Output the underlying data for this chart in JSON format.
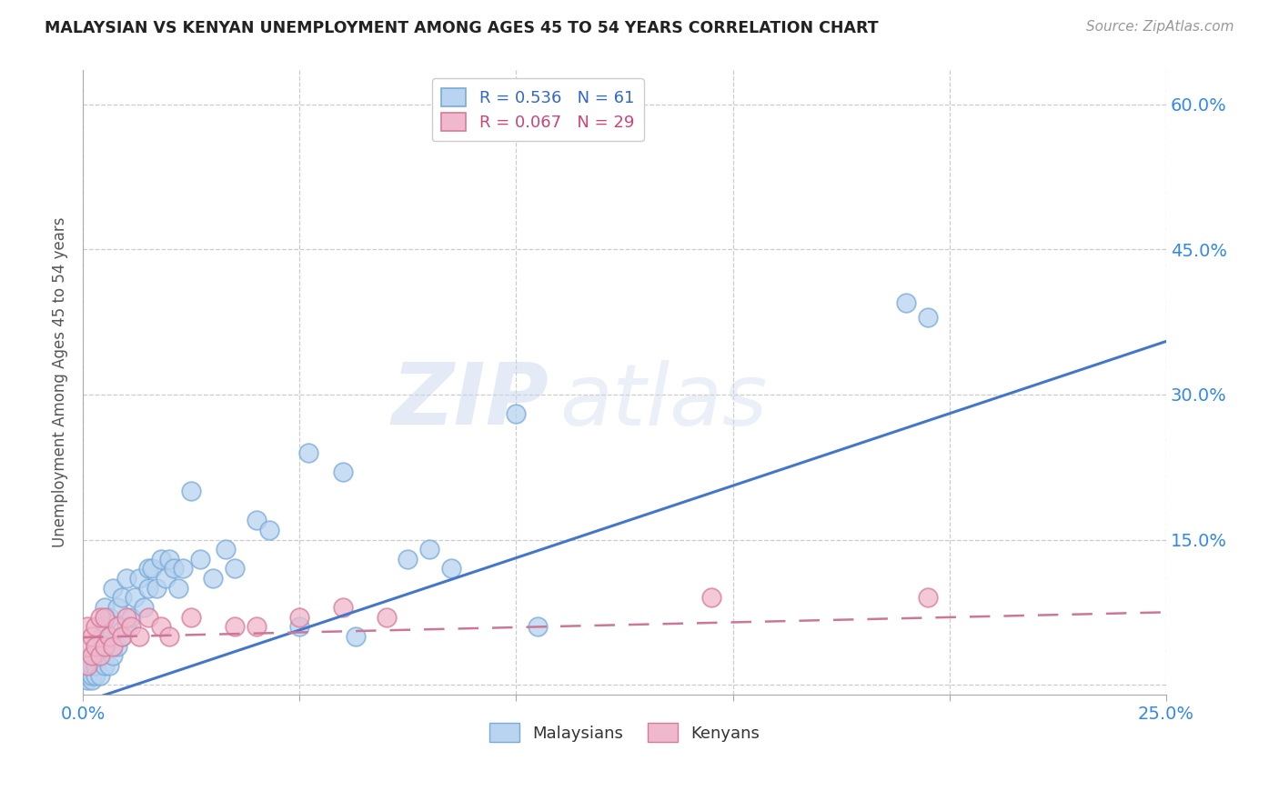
{
  "title": "MALAYSIAN VS KENYAN UNEMPLOYMENT AMONG AGES 45 TO 54 YEARS CORRELATION CHART",
  "source": "Source: ZipAtlas.com",
  "ylabel": "Unemployment Among Ages 45 to 54 years",
  "xlim": [
    0.0,
    0.25
  ],
  "ylim": [
    -0.01,
    0.635
  ],
  "xtick_positions": [
    0.0,
    0.05,
    0.1,
    0.15,
    0.2,
    0.25
  ],
  "xtick_labels": [
    "0.0%",
    "",
    "",
    "",
    "",
    "25.0%"
  ],
  "ytick_vals": [
    0.0,
    0.15,
    0.3,
    0.45,
    0.6
  ],
  "ytick_labels": [
    "",
    "15.0%",
    "30.0%",
    "45.0%",
    "60.0%"
  ],
  "malaysia_fill": "#b8d4f0",
  "malaysia_edge": "#7aaad8",
  "kenya_fill": "#f0b8cc",
  "kenya_edge": "#d87a9a",
  "line_blue": "#4477cc",
  "line_pink": "#cc7799",
  "watermark": "ZIPatlas",
  "malaysian_x": [
    0.001,
    0.001,
    0.001,
    0.002,
    0.002,
    0.002,
    0.002,
    0.003,
    0.003,
    0.003,
    0.003,
    0.004,
    0.004,
    0.004,
    0.005,
    0.005,
    0.005,
    0.005,
    0.006,
    0.006,
    0.006,
    0.007,
    0.007,
    0.008,
    0.008,
    0.009,
    0.009,
    0.01,
    0.01,
    0.011,
    0.012,
    0.013,
    0.014,
    0.015,
    0.015,
    0.016,
    0.017,
    0.018,
    0.019,
    0.02,
    0.021,
    0.022,
    0.023,
    0.025,
    0.027,
    0.03,
    0.033,
    0.035,
    0.04,
    0.043,
    0.05,
    0.052,
    0.06,
    0.063,
    0.075,
    0.08,
    0.085,
    0.1,
    0.105,
    0.19,
    0.195
  ],
  "malaysian_y": [
    0.005,
    0.01,
    0.02,
    0.005,
    0.01,
    0.02,
    0.03,
    0.01,
    0.02,
    0.03,
    0.04,
    0.01,
    0.03,
    0.05,
    0.02,
    0.04,
    0.06,
    0.08,
    0.02,
    0.05,
    0.07,
    0.03,
    0.1,
    0.04,
    0.08,
    0.05,
    0.09,
    0.06,
    0.11,
    0.07,
    0.09,
    0.11,
    0.08,
    0.12,
    0.1,
    0.12,
    0.1,
    0.13,
    0.11,
    0.13,
    0.12,
    0.1,
    0.12,
    0.2,
    0.13,
    0.11,
    0.14,
    0.12,
    0.17,
    0.16,
    0.06,
    0.24,
    0.22,
    0.05,
    0.13,
    0.14,
    0.12,
    0.28,
    0.06,
    0.395,
    0.38
  ],
  "kenyan_x": [
    0.001,
    0.001,
    0.001,
    0.002,
    0.002,
    0.003,
    0.003,
    0.004,
    0.004,
    0.005,
    0.005,
    0.006,
    0.007,
    0.008,
    0.009,
    0.01,
    0.011,
    0.013,
    0.015,
    0.018,
    0.02,
    0.025,
    0.035,
    0.04,
    0.05,
    0.06,
    0.07,
    0.145,
    0.195
  ],
  "kenyan_y": [
    0.02,
    0.04,
    0.06,
    0.03,
    0.05,
    0.04,
    0.06,
    0.03,
    0.07,
    0.04,
    0.07,
    0.05,
    0.04,
    0.06,
    0.05,
    0.07,
    0.06,
    0.05,
    0.07,
    0.06,
    0.05,
    0.07,
    0.06,
    0.06,
    0.07,
    0.08,
    0.07,
    0.09,
    0.09
  ],
  "blue_line_x0": 0.0,
  "blue_line_y0": -0.018,
  "blue_line_x1": 0.25,
  "blue_line_y1": 0.355,
  "pink_line_x0": 0.0,
  "pink_line_y0": 0.049,
  "pink_line_x1": 0.25,
  "pink_line_y1": 0.075
}
